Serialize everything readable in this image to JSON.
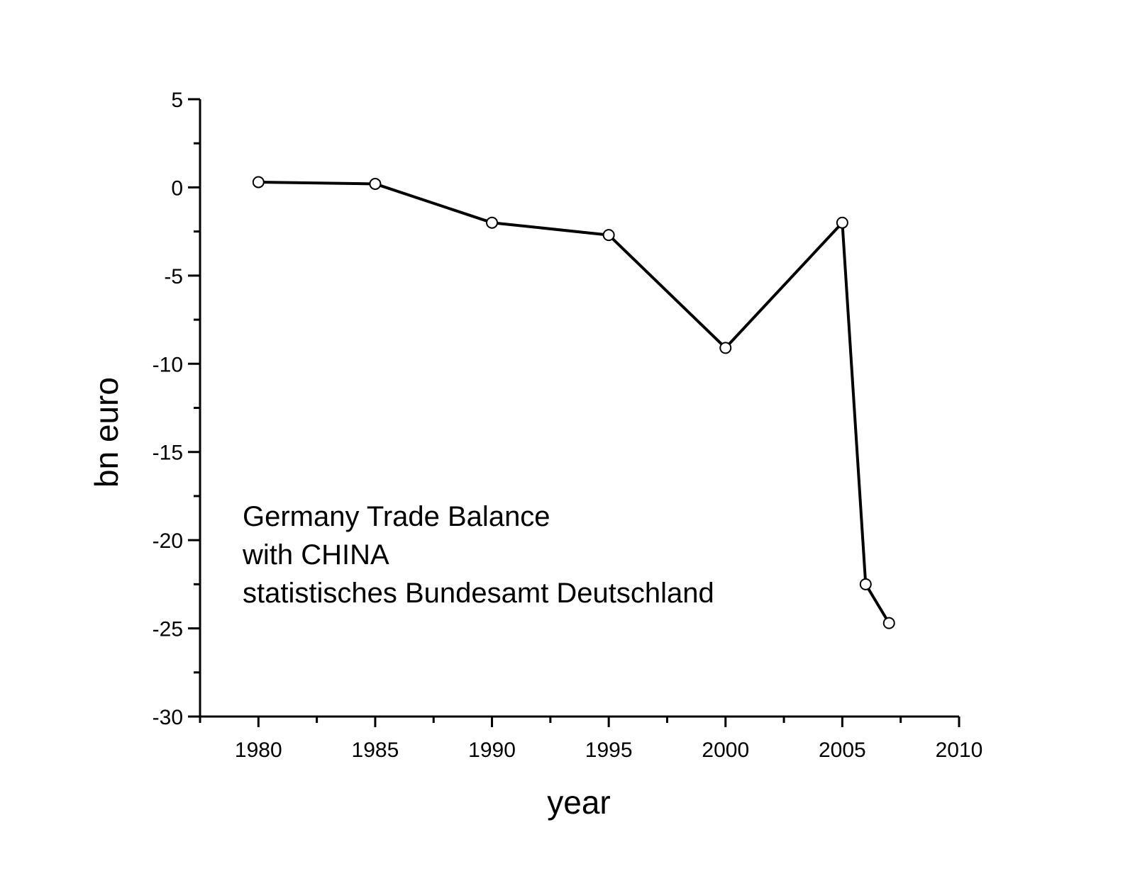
{
  "chart_data": {
    "type": "line",
    "x_label": "year",
    "y_label": "bn euro",
    "annotation": [
      "Germany Trade Balance",
      "with CHINA",
      "statistisches Bundesamt Deutschland"
    ],
    "x": [
      1980,
      1985,
      1990,
      1995,
      2000,
      2005,
      2006,
      2007
    ],
    "series": [
      {
        "color": "#000000",
        "values": [
          0.3,
          0.2,
          -2.0,
          -2.7,
          -9.1,
          -2.0,
          -22.5,
          -24.7
        ]
      }
    ],
    "xlim": [
      1977.5,
      2010
    ],
    "xticks": [
      1980,
      1985,
      1990,
      1995,
      2000,
      2005,
      2010
    ],
    "ylim": [
      -30,
      5
    ],
    "yticks": [
      -30,
      -25,
      -20,
      -15,
      -10,
      -5,
      0,
      5
    ],
    "grid": false
  }
}
